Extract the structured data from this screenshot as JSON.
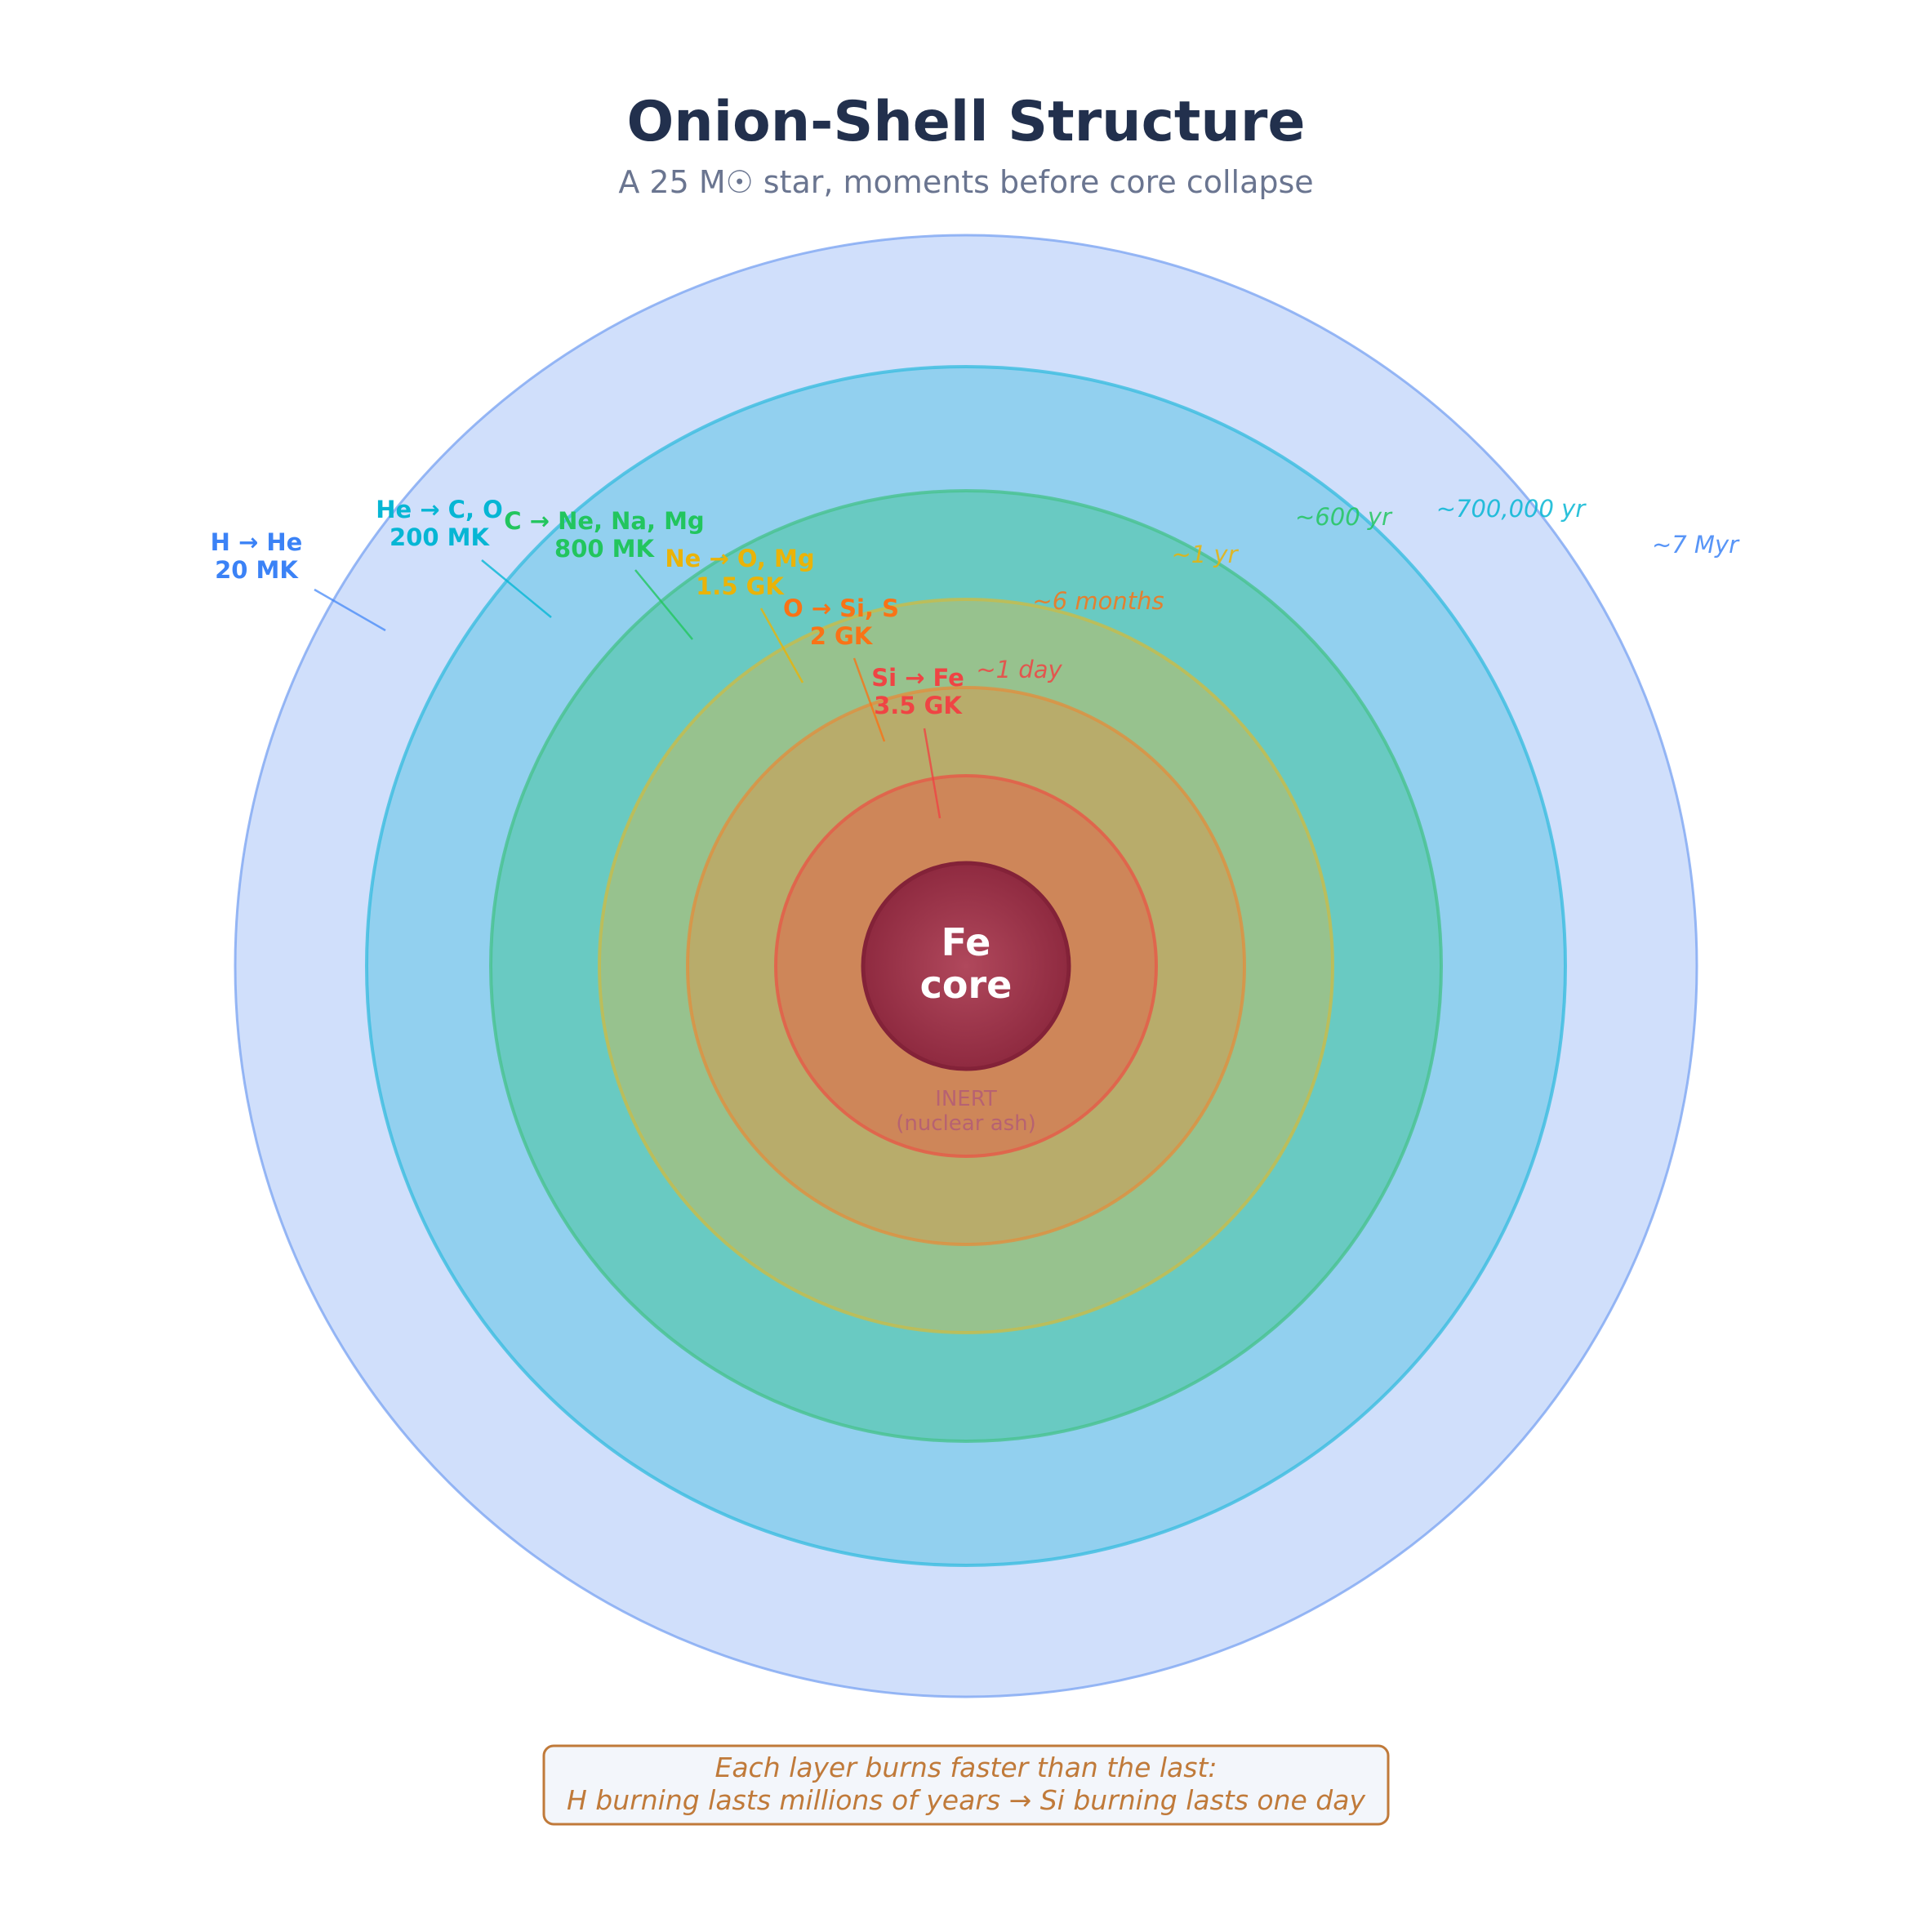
{
  "title": "Onion-Shell Structure",
  "subtitle": "A 25 M☉ star, moments before core collapse",
  "shells": [
    {
      "reaction": "H → He",
      "temperature": "20 MK",
      "duration": "~7 Myr",
      "color": "#3b82f6"
    },
    {
      "reaction": "He → C, O",
      "temperature": "200 MK",
      "duration": "~700,000 yr",
      "color": "#06b6d4"
    },
    {
      "reaction": "C → Ne, Na, Mg",
      "temperature": "800 MK",
      "duration": "~600 yr",
      "color": "#22c55e"
    },
    {
      "reaction": "Ne → O, Mg",
      "temperature": "1.5 GK",
      "duration": "~1 yr",
      "color": "#eab308"
    },
    {
      "reaction": "O → Si, S",
      "temperature": "2 GK",
      "duration": "~6 months",
      "color": "#f97316"
    },
    {
      "reaction": "Si → Fe",
      "temperature": "3.5 GK",
      "duration": "~1 day",
      "color": "#ef4444"
    }
  ],
  "core": {
    "line1": "Fe",
    "line2": "core",
    "color": "#9b2c45"
  },
  "inert": {
    "line1": "INERT",
    "line2": "(nuclear ash)"
  },
  "footnote": {
    "line1": "Each layer burns faster than the last:",
    "line2": "H burning lasts millions of years  →  Si burning lasts one day",
    "color": "#c07a3a"
  }
}
